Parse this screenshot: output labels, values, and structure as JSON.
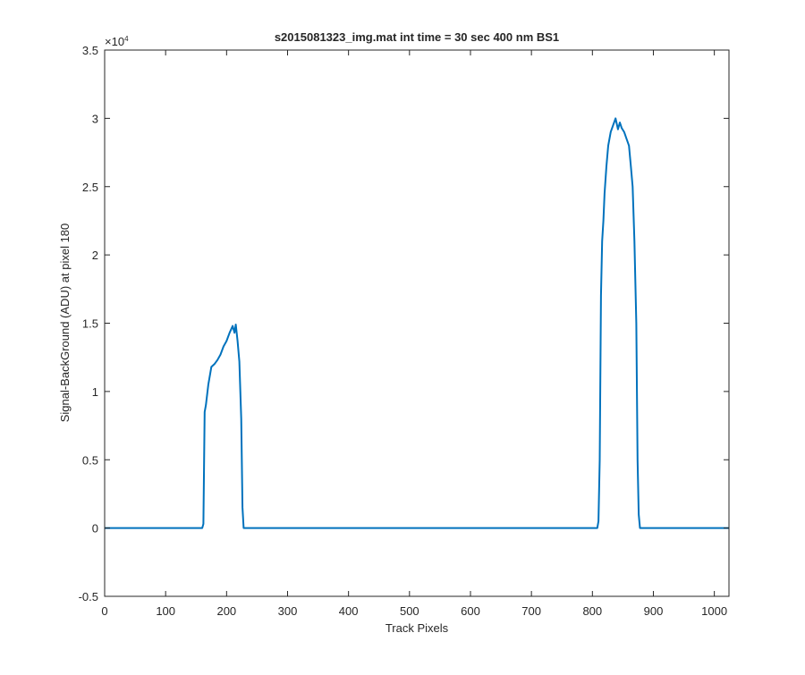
{
  "chart_data": {
    "type": "line",
    "title": "s2015081323_img.mat int time = 30 sec  400 nm BS1",
    "xlabel": "Track Pixels",
    "ylabel": "Signal-BackGround (ADU) at pixel 180",
    "y_exponent_label": "×10",
    "y_exponent_power": "4",
    "xlim": [
      0,
      1024
    ],
    "ylim": [
      -5000,
      35000
    ],
    "x_ticks": [
      0,
      100,
      200,
      300,
      400,
      500,
      600,
      700,
      800,
      900,
      1000
    ],
    "x_tick_labels": [
      "0",
      "100",
      "200",
      "300",
      "400",
      "500",
      "600",
      "700",
      "800",
      "900",
      "1000"
    ],
    "y_ticks": [
      -5000,
      0,
      5000,
      10000,
      15000,
      20000,
      25000,
      30000,
      35000
    ],
    "y_tick_labels": [
      "-0.5",
      "0",
      "0.5",
      "1",
      "1.5",
      "2",
      "2.5",
      "3",
      "3.5"
    ],
    "grid": false,
    "line_color": "#0072bd",
    "series": [
      {
        "x": [
          0,
          150,
          160,
          162,
          164,
          166,
          170,
          175,
          180,
          185,
          190,
          195,
          200,
          205,
          208,
          210,
          213,
          215,
          218,
          221,
          224,
          226,
          228,
          230,
          235,
          300,
          400,
          500,
          600,
          700,
          800,
          808,
          810,
          812,
          814,
          816,
          818,
          820,
          823,
          826,
          830,
          834,
          838,
          842,
          845,
          848,
          852,
          856,
          860,
          863,
          866,
          869,
          872,
          874,
          876,
          878,
          880,
          900,
          1000,
          1024
        ],
        "y": [
          0,
          0,
          0,
          300,
          8500,
          9000,
          10500,
          11800,
          12000,
          12300,
          12700,
          13300,
          13700,
          14300,
          14600,
          14800,
          14300,
          14900,
          13700,
          12200,
          8000,
          1500,
          0,
          0,
          0,
          0,
          0,
          0,
          0,
          0,
          0,
          0,
          500,
          5000,
          17000,
          21000,
          22500,
          24500,
          26500,
          28000,
          29000,
          29500,
          30000,
          29200,
          29700,
          29300,
          29000,
          28500,
          28000,
          26500,
          25000,
          21000,
          15000,
          5000,
          1000,
          0,
          0,
          0,
          0,
          0
        ]
      }
    ]
  }
}
